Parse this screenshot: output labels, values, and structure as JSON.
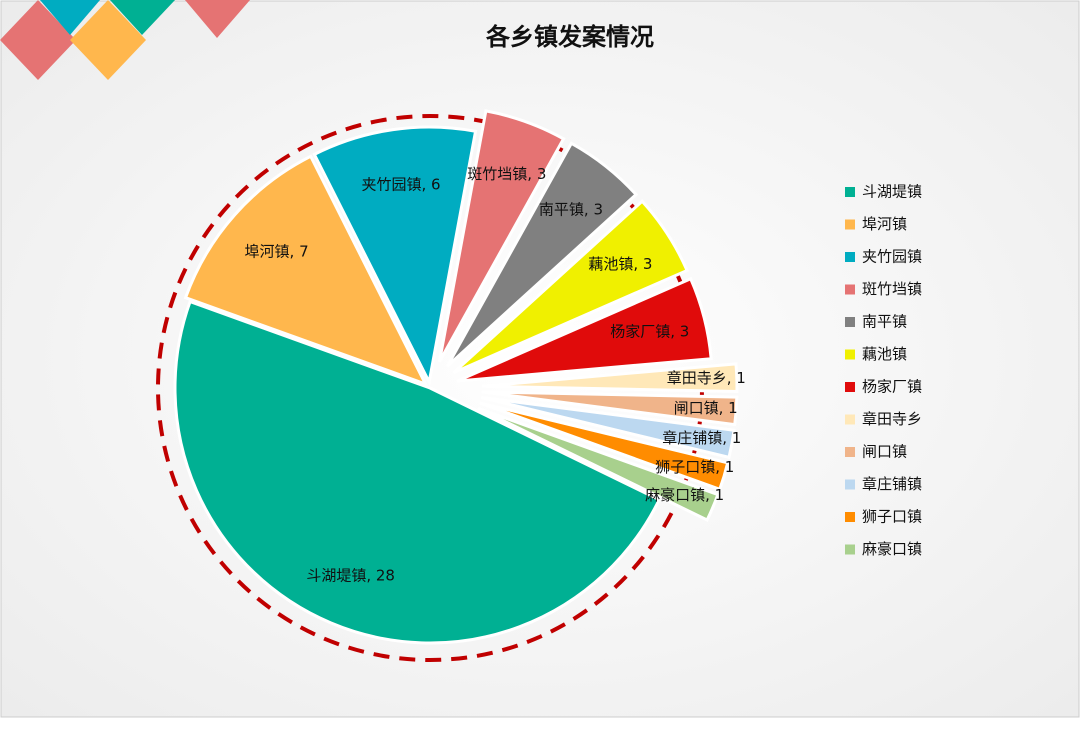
{
  "chart_data": {
    "type": "pie",
    "title": "各乡镇发案情况",
    "categories": [
      "斗湖堤镇",
      "埠河镇",
      "夹竹园镇",
      "斑竹垱镇",
      "南平镇",
      "藕池镇",
      "杨家厂镇",
      "章田寺乡",
      "闸口镇",
      "章庄铺镇",
      "狮子口镇",
      "麻豪口镇"
    ],
    "values": [
      28,
      7,
      6,
      3,
      3,
      3,
      3,
      1,
      1,
      1,
      1,
      1
    ],
    "value_labels": [
      "斗湖堤镇, 28",
      "埠河镇, 7",
      "夹竹园镇, 6",
      "斑竹垱镇, 3",
      "南平镇, 3",
      "藕池镇, 3",
      "杨家厂镇, 3",
      "章田寺乡, 1",
      "闸口镇, 1",
      "章庄铺镇, 1",
      "狮子口镇, 1",
      "麻豪口镇, 1"
    ],
    "colors": [
      "#00b093",
      "#ffb74d",
      "#00acc1",
      "#e57373",
      "#808080",
      "#f0f000",
      "#e00b0b",
      "#ffe8b8",
      "#f0b48a",
      "#bcd8f0",
      "#ff8c00",
      "#a8d08d"
    ],
    "legend": "right"
  }
}
